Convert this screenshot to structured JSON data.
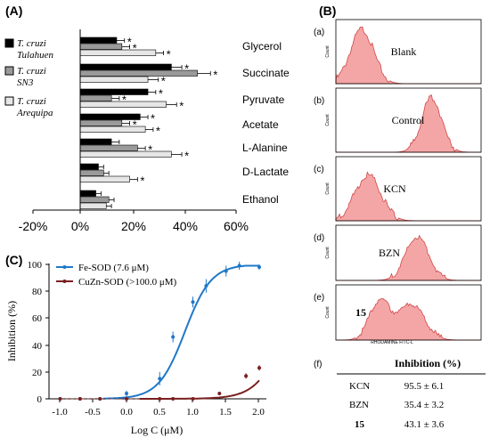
{
  "panels": {
    "A": {
      "label": "(A)",
      "x_ticks": [
        "-20%",
        "0%",
        "20%",
        "40%",
        "60%"
      ],
      "legend": [
        {
          "line1": "T. cruzi",
          "line2": "Tulahuen",
          "color": "#000000"
        },
        {
          "line1": "T. cruzi",
          "line2": "SN3",
          "color": "#9a9a9a"
        },
        {
          "line1": "T. cruzi",
          "line2": "Arequipa",
          "color": "#e6e6e6"
        }
      ],
      "categories": [
        "Glycerol",
        "Succinate",
        "Pyruvate",
        "Acetate",
        "L-Alanine",
        "D-Lactate",
        "Ethanol"
      ],
      "star": "*"
    },
    "B": {
      "label": "(B)",
      "sub": [
        {
          "tag": "(a)",
          "name": "Blank"
        },
        {
          "tag": "(b)",
          "name": "Control"
        },
        {
          "tag": "(c)",
          "name": "KCN"
        },
        {
          "tag": "(d)",
          "name": "BZN"
        },
        {
          "tag": "(e)",
          "name": "15"
        }
      ],
      "ylabel": "Count",
      "xlabel": "RHODAMINE FITC-L",
      "table": {
        "tag": "(f)",
        "header": "Inhibition (%)",
        "rows": [
          {
            "name": "KCN",
            "value": "95.5 ± 6.1"
          },
          {
            "name": "BZN",
            "value": "35.4 ± 3.2"
          },
          {
            "name": "15",
            "value": "43.1 ± 3.6"
          }
        ]
      }
    },
    "C": {
      "label": "(C)",
      "xlabel": "Log C (μM)",
      "ylabel": "Inhibition (%)",
      "x_ticks": [
        "-1.0",
        "-0.5",
        "0.0",
        "0.5",
        "1.0",
        "1.5",
        "2.0"
      ],
      "y_ticks": [
        "0",
        "20",
        "40",
        "60",
        "80",
        "100"
      ]
    }
  },
  "chart_data": [
    {
      "type": "bar",
      "panel": "A",
      "orientation": "horizontal",
      "categories": [
        "Glycerol",
        "Succinate",
        "Pyruvate",
        "Acetate",
        "L-Alanine",
        "D-Lactate",
        "Ethanol"
      ],
      "xlim": [
        -20,
        60
      ],
      "unit": "%",
      "series": [
        {
          "name": "T. cruzi Tulahuen",
          "color": "#000000",
          "values": [
            14,
            35,
            26,
            23,
            12,
            7,
            6
          ],
          "errors": [
            3,
            4,
            3,
            3,
            3,
            2,
            2
          ],
          "significant": [
            true,
            true,
            true,
            true,
            false,
            false,
            false
          ]
        },
        {
          "name": "T. cruzi SN3",
          "color": "#9a9a9a",
          "values": [
            16,
            45,
            12,
            16,
            22,
            9,
            11
          ],
          "errors": [
            3,
            5,
            3,
            3,
            3,
            2,
            2
          ],
          "significant": [
            true,
            true,
            true,
            true,
            true,
            false,
            false
          ]
        },
        {
          "name": "T. cruzi Arequipa",
          "color": "#e6e6e6",
          "values": [
            29,
            26,
            33,
            25,
            35,
            19,
            10
          ],
          "errors": [
            3,
            4,
            4,
            3,
            4,
            3,
            2
          ],
          "significant": [
            true,
            true,
            true,
            true,
            true,
            true,
            false
          ]
        }
      ]
    },
    {
      "type": "line",
      "panel": "C",
      "xlabel": "Log C (μM)",
      "ylabel": "Inhibition (%)",
      "xlim": [
        -1.15,
        2.05
      ],
      "ylim": [
        0,
        100
      ],
      "series": [
        {
          "name": "Fe-SOD (7.6 μM)",
          "color": "#1f78c8",
          "x": [
            -1.0,
            -0.7,
            -0.4,
            0.0,
            0.5,
            0.7,
            1.0,
            1.2,
            1.5,
            1.7,
            2.0
          ],
          "y": [
            0,
            0,
            0,
            4,
            15,
            46,
            72,
            84,
            95,
            99,
            98
          ],
          "yerr": [
            1,
            1,
            1,
            2,
            5,
            4,
            4,
            5,
            4,
            3,
            2
          ],
          "fit": {
            "ic50_log": 0.88,
            "hill": 2.2,
            "top": 100
          }
        },
        {
          "name": "CuZn-SOD (>100.0 μM)",
          "color": "#7a1f1f",
          "x": [
            -1.0,
            -0.7,
            -0.4,
            0.0,
            0.5,
            0.7,
            1.0,
            1.4,
            1.8,
            2.0
          ],
          "y": [
            0,
            0,
            0,
            0,
            0,
            0,
            0,
            4,
            17,
            23
          ],
          "yerr": [
            1,
            1,
            1,
            1,
            1,
            1,
            1,
            1,
            2,
            2
          ],
          "fit": {
            "ic50_log": 2.4,
            "hill": 2.0,
            "top": 100
          }
        }
      ]
    }
  ]
}
